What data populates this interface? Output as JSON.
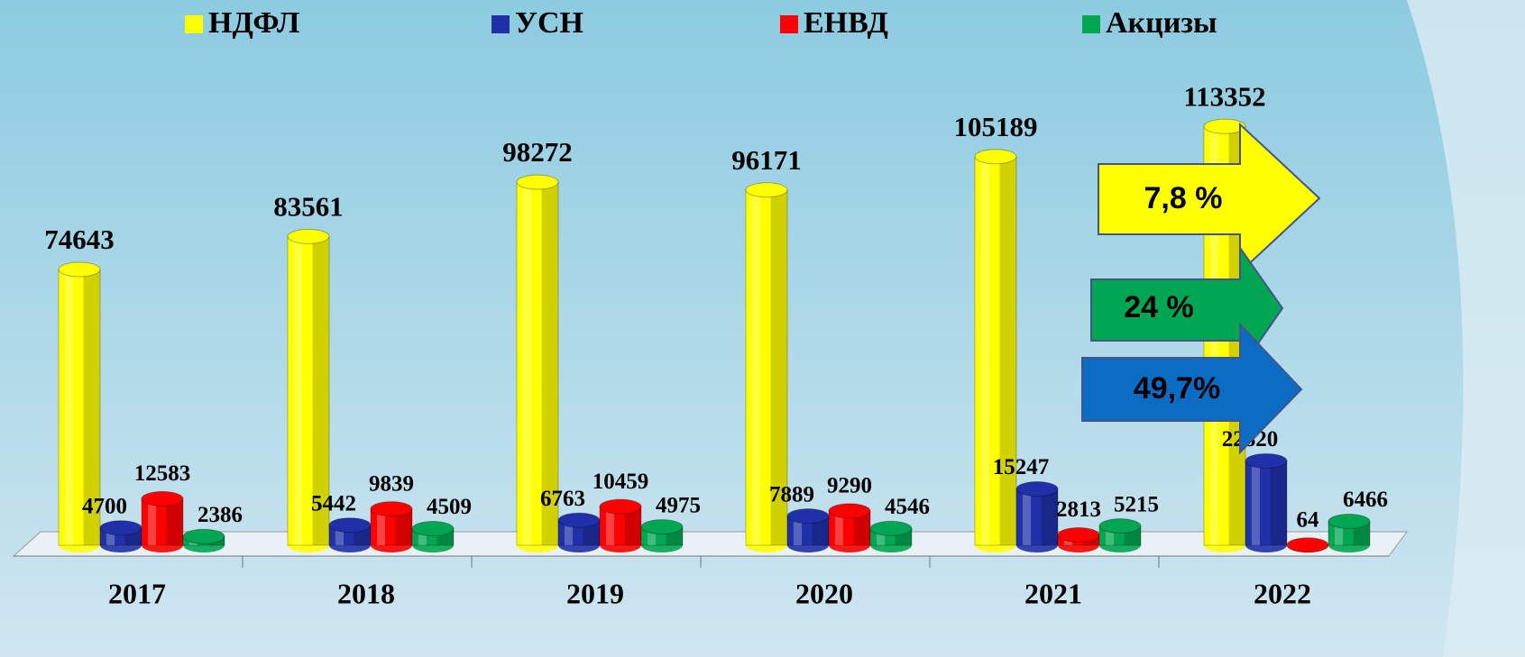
{
  "chart_data": {
    "type": "bar",
    "categories": [
      "2017",
      "2018",
      "2019",
      "2020",
      "2021",
      "2022"
    ],
    "series": [
      {
        "name": "НДФЛ",
        "color": "#ffff00",
        "values": [
          74643,
          83561,
          98272,
          96171,
          105189,
          113352
        ]
      },
      {
        "name": "УСН",
        "color": "#1f30a8",
        "values": [
          4700,
          5442,
          6763,
          7889,
          15247,
          22820
        ]
      },
      {
        "name": "ЕНВД",
        "color": "#ff0000",
        "values": [
          12583,
          9839,
          10459,
          9290,
          2813,
          64
        ]
      },
      {
        "name": "Акцизы",
        "color": "#00a651",
        "values": [
          2386,
          4509,
          4975,
          4546,
          5215,
          6466
        ]
      }
    ],
    "ylim": [
      0,
      120000
    ],
    "annotations": [
      "7,8 %",
      "24 %",
      "49,7%"
    ]
  }
}
